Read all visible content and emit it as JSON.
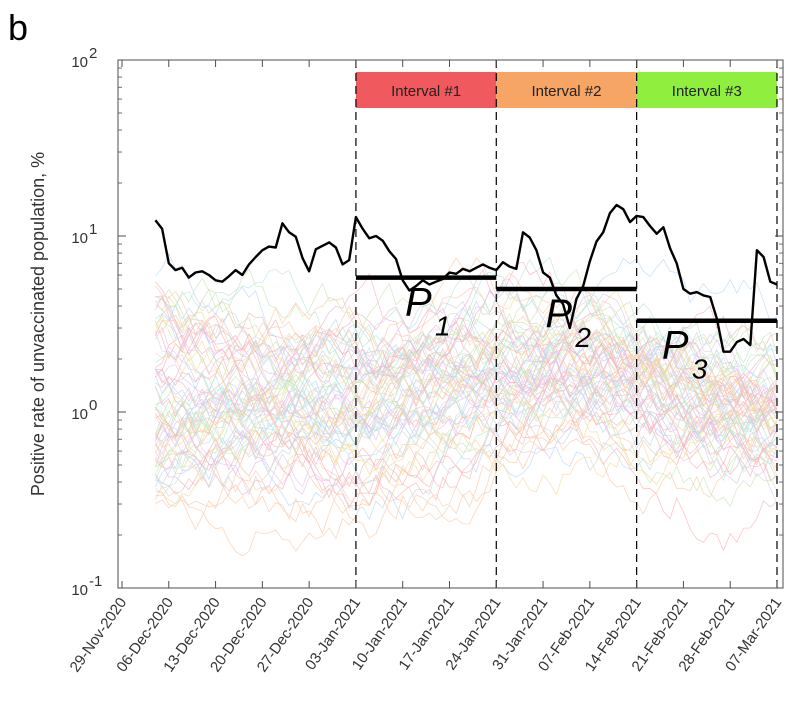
{
  "panel_label": "b",
  "chart_data": {
    "type": "line",
    "scale_y": "log",
    "ylabel": "Positive rate of unvaccinated population, %",
    "ylim": [
      0.1,
      100
    ],
    "y_ticks": [
      {
        "value": 0.1,
        "base": "10",
        "exp": "-1"
      },
      {
        "value": 1,
        "base": "10",
        "exp": "0"
      },
      {
        "value": 10,
        "base": "10",
        "exp": "1"
      },
      {
        "value": 100,
        "base": "10",
        "exp": "2"
      }
    ],
    "x_start": "2020-11-29",
    "x_end": "2021-03-07",
    "x_ticks": [
      {
        "date": "2020-11-29",
        "label": "29-Nov-2020"
      },
      {
        "date": "2020-12-06",
        "label": "06-Dec-2020"
      },
      {
        "date": "2020-12-13",
        "label": "13-Dec-2020"
      },
      {
        "date": "2020-12-20",
        "label": "20-Dec-2020"
      },
      {
        "date": "2020-12-27",
        "label": "27-Dec-2020"
      },
      {
        "date": "2021-01-03",
        "label": "03-Jan-2021"
      },
      {
        "date": "2021-01-10",
        "label": "10-Jan-2021"
      },
      {
        "date": "2021-01-17",
        "label": "17-Jan-2021"
      },
      {
        "date": "2021-01-24",
        "label": "24-Jan-2021"
      },
      {
        "date": "2021-01-31",
        "label": "31-Jan-2021"
      },
      {
        "date": "2021-02-07",
        "label": "07-Feb-2021"
      },
      {
        "date": "2021-02-14",
        "label": "14-Feb-2021"
      },
      {
        "date": "2021-02-21",
        "label": "21-Feb-2021"
      },
      {
        "date": "2021-02-28",
        "label": "28-Feb-2021"
      },
      {
        "date": "2021-03-07",
        "label": "07-Mar-2021"
      }
    ],
    "grid": false,
    "intervals": [
      {
        "label": "Interval #1",
        "start": "2021-01-03",
        "end": "2021-01-24",
        "color": "#f05a5e"
      },
      {
        "label": "Interval #2",
        "start": "2021-01-24",
        "end": "2021-02-14",
        "color": "#f6a564"
      },
      {
        "label": "Interval #3",
        "start": "2021-02-14",
        "end": "2021-03-07",
        "color": "#90ee3e"
      }
    ],
    "interval_lines": [
      "2021-01-03",
      "2021-01-24",
      "2021-02-14",
      "2021-03-07"
    ],
    "levels": [
      {
        "label": "P",
        "sub": "1",
        "start": "2021-01-03",
        "end": "2021-01-24",
        "value": 5.8
      },
      {
        "label": "P",
        "sub": "2",
        "start": "2021-01-24",
        "end": "2021-02-14",
        "value": 5.0
      },
      {
        "label": "P",
        "sub": "3",
        "start": "2021-02-14",
        "end": "2021-03-07",
        "value": 3.3
      }
    ],
    "main_series": {
      "color": "#000000",
      "points": [
        [
          "2020-12-04",
          12.3
        ],
        [
          "2020-12-05",
          11.0
        ],
        [
          "2020-12-06",
          7.0
        ],
        [
          "2020-12-07",
          6.4
        ],
        [
          "2020-12-08",
          6.6
        ],
        [
          "2020-12-09",
          5.8
        ],
        [
          "2020-12-10",
          6.2
        ],
        [
          "2020-12-11",
          6.3
        ],
        [
          "2020-12-12",
          6.0
        ],
        [
          "2020-12-13",
          5.6
        ],
        [
          "2020-12-14",
          5.5
        ],
        [
          "2020-12-15",
          5.9
        ],
        [
          "2020-12-16",
          6.4
        ],
        [
          "2020-12-17",
          6.0
        ],
        [
          "2020-12-18",
          6.9
        ],
        [
          "2020-12-19",
          7.6
        ],
        [
          "2020-12-20",
          8.3
        ],
        [
          "2020-12-21",
          8.7
        ],
        [
          "2020-12-22",
          8.6
        ],
        [
          "2020-12-23",
          11.8
        ],
        [
          "2020-12-24",
          10.5
        ],
        [
          "2020-12-25",
          9.9
        ],
        [
          "2020-12-26",
          7.5
        ],
        [
          "2020-12-27",
          6.3
        ],
        [
          "2020-12-28",
          8.4
        ],
        [
          "2020-12-29",
          8.8
        ],
        [
          "2020-12-30",
          9.2
        ],
        [
          "2020-12-31",
          8.6
        ],
        [
          "2021-01-01",
          6.9
        ],
        [
          "2021-01-02",
          7.3
        ],
        [
          "2021-01-03",
          12.8
        ],
        [
          "2021-01-04",
          11.0
        ],
        [
          "2021-01-05",
          9.7
        ],
        [
          "2021-01-06",
          10.0
        ],
        [
          "2021-01-07",
          9.4
        ],
        [
          "2021-01-08",
          8.2
        ],
        [
          "2021-01-09",
          7.4
        ],
        [
          "2021-01-10",
          5.6
        ],
        [
          "2021-01-11",
          4.9
        ],
        [
          "2021-01-12",
          5.2
        ],
        [
          "2021-01-13",
          5.6
        ],
        [
          "2021-01-14",
          5.3
        ],
        [
          "2021-01-15",
          5.5
        ],
        [
          "2021-01-16",
          5.7
        ],
        [
          "2021-01-17",
          6.2
        ],
        [
          "2021-01-18",
          6.1
        ],
        [
          "2021-01-19",
          6.5
        ],
        [
          "2021-01-20",
          6.3
        ],
        [
          "2021-01-21",
          6.6
        ],
        [
          "2021-01-22",
          6.9
        ],
        [
          "2021-01-23",
          6.6
        ],
        [
          "2021-01-24",
          6.4
        ],
        [
          "2021-01-25",
          7.1
        ],
        [
          "2021-01-26",
          6.7
        ],
        [
          "2021-01-27",
          6.5
        ],
        [
          "2021-01-28",
          10.5
        ],
        [
          "2021-01-29",
          9.8
        ],
        [
          "2021-01-30",
          8.3
        ],
        [
          "2021-01-31",
          6.2
        ],
        [
          "2021-02-01",
          5.8
        ],
        [
          "2021-02-02",
          4.6
        ],
        [
          "2021-02-03",
          4.1
        ],
        [
          "2021-02-04",
          3.0
        ],
        [
          "2021-02-05",
          4.4
        ],
        [
          "2021-02-06",
          5.2
        ],
        [
          "2021-02-07",
          7.2
        ],
        [
          "2021-02-08",
          9.3
        ],
        [
          "2021-02-09",
          10.5
        ],
        [
          "2021-02-10",
          13.5
        ],
        [
          "2021-02-11",
          15.0
        ],
        [
          "2021-02-12",
          14.2
        ],
        [
          "2021-02-13",
          12.0
        ],
        [
          "2021-02-14",
          13.0
        ],
        [
          "2021-02-15",
          12.8
        ],
        [
          "2021-02-16",
          11.4
        ],
        [
          "2021-02-17",
          10.3
        ],
        [
          "2021-02-18",
          11.2
        ],
        [
          "2021-02-19",
          8.5
        ],
        [
          "2021-02-20",
          7.0
        ],
        [
          "2021-02-21",
          5.0
        ],
        [
          "2021-02-22",
          4.7
        ],
        [
          "2021-02-23",
          4.8
        ],
        [
          "2021-02-24",
          4.6
        ],
        [
          "2021-02-25",
          4.5
        ],
        [
          "2021-02-26",
          3.4
        ],
        [
          "2021-02-27",
          2.2
        ],
        [
          "2021-02-28",
          2.2
        ],
        [
          "2021-03-01",
          2.5
        ],
        [
          "2021-03-02",
          2.6
        ],
        [
          "2021-03-03",
          2.4
        ],
        [
          "2021-03-04",
          8.3
        ],
        [
          "2021-03-05",
          7.6
        ],
        [
          "2021-03-06",
          5.5
        ],
        [
          "2021-03-07",
          5.3
        ]
      ]
    },
    "background_lines": {
      "count": 70,
      "start": "2020-12-04",
      "end": "2021-03-07",
      "palette": [
        "#f4b6b6",
        "#b8d8f2",
        "#f6dc9c",
        "#c9e6b2",
        "#e3c4ee",
        "#f7c9a8",
        "#b9e4e0",
        "#f2b2cf"
      ]
    }
  }
}
